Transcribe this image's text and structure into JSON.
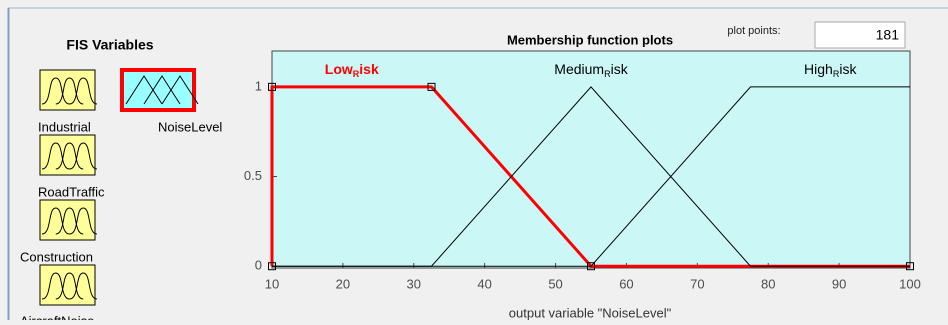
{
  "panel_title": "FIS Variables",
  "fis_variables": [
    {
      "label": "Industrial",
      "kind": "input"
    },
    {
      "label": "NoiseLevel",
      "kind": "output"
    },
    {
      "label": "RoadTraffic",
      "kind": "input"
    },
    {
      "label": "Construction",
      "kind": "input"
    },
    {
      "label": "AircraftNoise",
      "kind": "input"
    }
  ],
  "plot_points_label": "plot points:",
  "plot_points_value": "181",
  "chart_data": {
    "type": "line",
    "title": "Membership function plots",
    "x_label": "output variable \"NoiseLevel\"",
    "background": "#ccf7f7",
    "series": [
      {
        "name": [
          "Low",
          "R",
          "isk"
        ],
        "color": "#ff0000",
        "linewidth": 3,
        "x": [
          10,
          10,
          32.5,
          55,
          100
        ],
        "values": [
          0,
          1,
          1,
          0,
          0
        ]
      },
      {
        "name": [
          "Medium",
          "R",
          "isk"
        ],
        "color": "#000000",
        "linewidth": 1,
        "x": [
          10,
          32.5,
          55,
          77.5,
          100
        ],
        "values": [
          0,
          0,
          1,
          0,
          0
        ]
      },
      {
        "name": [
          "High",
          "R",
          "isk"
        ],
        "color": "#000000",
        "linewidth": 1,
        "x": [
          10,
          55,
          77.5,
          100
        ],
        "values": [
          0,
          0,
          1,
          1
        ]
      }
    ],
    "selected_series": 0,
    "xlim": [
      10,
      100
    ],
    "xticks": [
      10,
      20,
      30,
      40,
      50,
      60,
      70,
      80,
      90,
      100
    ],
    "ylim": [
      -0.01,
      1.2
    ],
    "yticks": [
      0,
      0.5,
      1
    ]
  }
}
